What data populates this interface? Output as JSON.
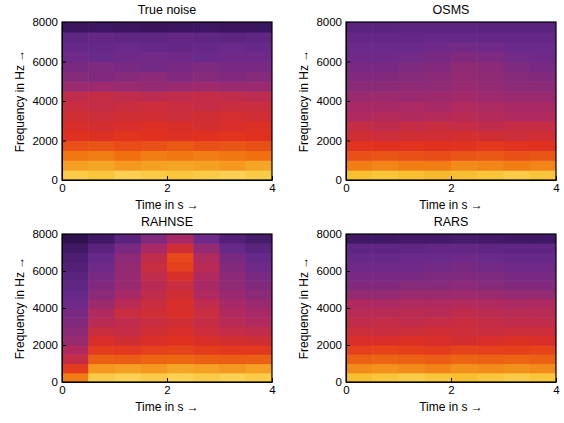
{
  "chart_data": [
    {
      "type": "heatmap",
      "title": "True noise",
      "x_label": "Time in s →",
      "y_label": "Frequency in Hz →",
      "xlim": [
        0,
        4
      ],
      "xticks": [
        0,
        2,
        4
      ],
      "ylim": [
        0,
        8000
      ],
      "yticks": [
        0,
        2000,
        4000,
        6000,
        8000
      ],
      "x_bins": [
        0,
        0.5,
        1,
        1.5,
        2,
        2.5,
        3,
        3.5,
        4
      ],
      "y_bins": [
        0,
        500,
        1000,
        1500,
        2000,
        2500,
        3000,
        3500,
        4000,
        4500,
        5000,
        5500,
        6000,
        6500,
        7000,
        7500,
        8000
      ],
      "zlim": [
        0,
        100
      ],
      "cells": [
        [
          92,
          91,
          93,
          92,
          91,
          92,
          93,
          92
        ],
        [
          85,
          86,
          84,
          85,
          86,
          85,
          84,
          86
        ],
        [
          79,
          80,
          78,
          80,
          79,
          80,
          79,
          78
        ],
        [
          70,
          71,
          69,
          70,
          72,
          70,
          71,
          70
        ],
        [
          62,
          61,
          63,
          62,
          61,
          62,
          63,
          62
        ],
        [
          60,
          59,
          60,
          61,
          60,
          59,
          60,
          61
        ],
        [
          58,
          57,
          58,
          58,
          57,
          58,
          59,
          58
        ],
        [
          56,
          55,
          56,
          57,
          56,
          55,
          56,
          56
        ],
        [
          54,
          55,
          54,
          53,
          54,
          55,
          54,
          53
        ],
        [
          45,
          46,
          45,
          44,
          45,
          46,
          45,
          45
        ],
        [
          41,
          40,
          41,
          42,
          40,
          41,
          40,
          41
        ],
        [
          38,
          39,
          38,
          37,
          38,
          39,
          38,
          38
        ],
        [
          36,
          35,
          36,
          37,
          36,
          35,
          36,
          36
        ],
        [
          34,
          34,
          35,
          34,
          33,
          34,
          35,
          34
        ],
        [
          32,
          33,
          32,
          32,
          33,
          32,
          31,
          32
        ],
        [
          20,
          21,
          20,
          19,
          20,
          21,
          20,
          20
        ]
      ]
    },
    {
      "type": "heatmap",
      "title": "OSMS",
      "x_label": "Time in s →",
      "y_label": "Frequency in Hz →",
      "xlim": [
        0,
        4
      ],
      "xticks": [
        0,
        2,
        4
      ],
      "ylim": [
        0,
        8000
      ],
      "yticks": [
        0,
        2000,
        4000,
        6000,
        8000
      ],
      "x_bins": [
        0,
        0.5,
        1,
        1.5,
        2,
        2.5,
        3,
        3.5,
        4
      ],
      "y_bins": [
        0,
        500,
        1000,
        1500,
        2000,
        2500,
        3000,
        3500,
        4000,
        4500,
        5000,
        5500,
        6000,
        6500,
        7000,
        7500,
        8000
      ],
      "zlim": [
        0,
        100
      ],
      "cells": [
        [
          90,
          91,
          90,
          89,
          90,
          91,
          92,
          91
        ],
        [
          80,
          81,
          80,
          80,
          82,
          81,
          80,
          81
        ],
        [
          70,
          71,
          70,
          69,
          71,
          72,
          70,
          71
        ],
        [
          63,
          62,
          63,
          62,
          63,
          64,
          63,
          62
        ],
        [
          58,
          57,
          58,
          58,
          59,
          58,
          57,
          58
        ],
        [
          55,
          54,
          55,
          56,
          55,
          54,
          55,
          55
        ],
        [
          50,
          51,
          50,
          51,
          52,
          51,
          50,
          50
        ],
        [
          48,
          48,
          49,
          48,
          50,
          49,
          48,
          48
        ],
        [
          45,
          46,
          45,
          46,
          47,
          46,
          45,
          45
        ],
        [
          42,
          42,
          43,
          43,
          45,
          44,
          42,
          42
        ],
        [
          40,
          40,
          41,
          42,
          44,
          43,
          41,
          40
        ],
        [
          38,
          38,
          39,
          40,
          43,
          42,
          39,
          38
        ],
        [
          36,
          36,
          37,
          38,
          40,
          39,
          37,
          36
        ],
        [
          35,
          35,
          35,
          36,
          37,
          36,
          35,
          35
        ],
        [
          33,
          33,
          33,
          34,
          34,
          33,
          33,
          33
        ],
        [
          30,
          30,
          31,
          31,
          31,
          30,
          30,
          30
        ]
      ]
    },
    {
      "type": "heatmap",
      "title": "RAHNSE",
      "x_label": "Time in s →",
      "y_label": "Frequency in Hz →",
      "xlim": [
        0,
        4
      ],
      "xticks": [
        0,
        2,
        4
      ],
      "ylim": [
        0,
        8000
      ],
      "yticks": [
        0,
        2000,
        4000,
        6000,
        8000
      ],
      "x_bins": [
        0,
        0.5,
        1,
        1.5,
        2,
        2.5,
        3,
        3.5,
        4
      ],
      "y_bins": [
        0,
        500,
        1000,
        1500,
        2000,
        2500,
        3000,
        3500,
        4000,
        4500,
        5000,
        5500,
        6000,
        6500,
        7000,
        7500,
        8000
      ],
      "zlim": [
        0,
        100
      ],
      "cells": [
        [
          80,
          92,
          93,
          92,
          93,
          92,
          93,
          92
        ],
        [
          65,
          84,
          85,
          84,
          86,
          85,
          84,
          85
        ],
        [
          55,
          74,
          73,
          75,
          76,
          74,
          73,
          74
        ],
        [
          50,
          65,
          64,
          66,
          67,
          65,
          64,
          64
        ],
        [
          45,
          60,
          58,
          60,
          62,
          60,
          59,
          58
        ],
        [
          42,
          56,
          55,
          58,
          60,
          57,
          55,
          54
        ],
        [
          40,
          52,
          54,
          56,
          58,
          55,
          52,
          50
        ],
        [
          38,
          50,
          56,
          58,
          60,
          56,
          50,
          48
        ],
        [
          36,
          46,
          52,
          56,
          60,
          54,
          48,
          45
        ],
        [
          34,
          42,
          48,
          54,
          58,
          50,
          45,
          42
        ],
        [
          32,
          40,
          45,
          52,
          56,
          48,
          43,
          40
        ],
        [
          30,
          38,
          44,
          54,
          60,
          50,
          42,
          38
        ],
        [
          28,
          36,
          44,
          56,
          66,
          52,
          40,
          36
        ],
        [
          26,
          34,
          42,
          54,
          68,
          50,
          38,
          34
        ],
        [
          22,
          30,
          38,
          48,
          58,
          44,
          34,
          30
        ],
        [
          15,
          22,
          30,
          40,
          48,
          36,
          28,
          24
        ]
      ]
    },
    {
      "type": "heatmap",
      "title": "RARS",
      "x_label": "Time in s →",
      "y_label": "Frequency in Hz →",
      "xlim": [
        0,
        4
      ],
      "xticks": [
        0,
        2,
        4
      ],
      "ylim": [
        0,
        8000
      ],
      "yticks": [
        0,
        2000,
        4000,
        6000,
        8000
      ],
      "x_bins": [
        0,
        0.5,
        1,
        1.5,
        2,
        2.5,
        3,
        3.5,
        4
      ],
      "y_bins": [
        0,
        500,
        1000,
        1500,
        2000,
        2500,
        3000,
        3500,
        4000,
        4500,
        5000,
        5500,
        6000,
        6500,
        7000,
        7500,
        8000
      ],
      "zlim": [
        0,
        100
      ],
      "cells": [
        [
          90,
          91,
          92,
          91,
          90,
          91,
          92,
          91
        ],
        [
          82,
          83,
          82,
          81,
          83,
          82,
          83,
          82
        ],
        [
          74,
          75,
          74,
          73,
          75,
          74,
          75,
          74
        ],
        [
          66,
          67,
          66,
          65,
          67,
          66,
          66,
          67
        ],
        [
          60,
          60,
          61,
          60,
          59,
          60,
          61,
          60
        ],
        [
          57,
          56,
          57,
          58,
          57,
          56,
          57,
          57
        ],
        [
          54,
          55,
          54,
          55,
          56,
          55,
          54,
          54
        ],
        [
          52,
          52,
          53,
          52,
          54,
          53,
          52,
          52
        ],
        [
          50,
          49,
          50,
          50,
          51,
          50,
          49,
          50
        ],
        [
          44,
          44,
          45,
          45,
          46,
          45,
          44,
          44
        ],
        [
          40,
          40,
          41,
          41,
          42,
          41,
          40,
          40
        ],
        [
          38,
          38,
          38,
          39,
          40,
          39,
          38,
          38
        ],
        [
          36,
          36,
          36,
          37,
          38,
          37,
          36,
          36
        ],
        [
          34,
          34,
          35,
          35,
          36,
          35,
          34,
          34
        ],
        [
          32,
          32,
          32,
          33,
          33,
          32,
          32,
          32
        ],
        [
          22,
          22,
          23,
          23,
          24,
          23,
          22,
          22
        ]
      ]
    }
  ]
}
